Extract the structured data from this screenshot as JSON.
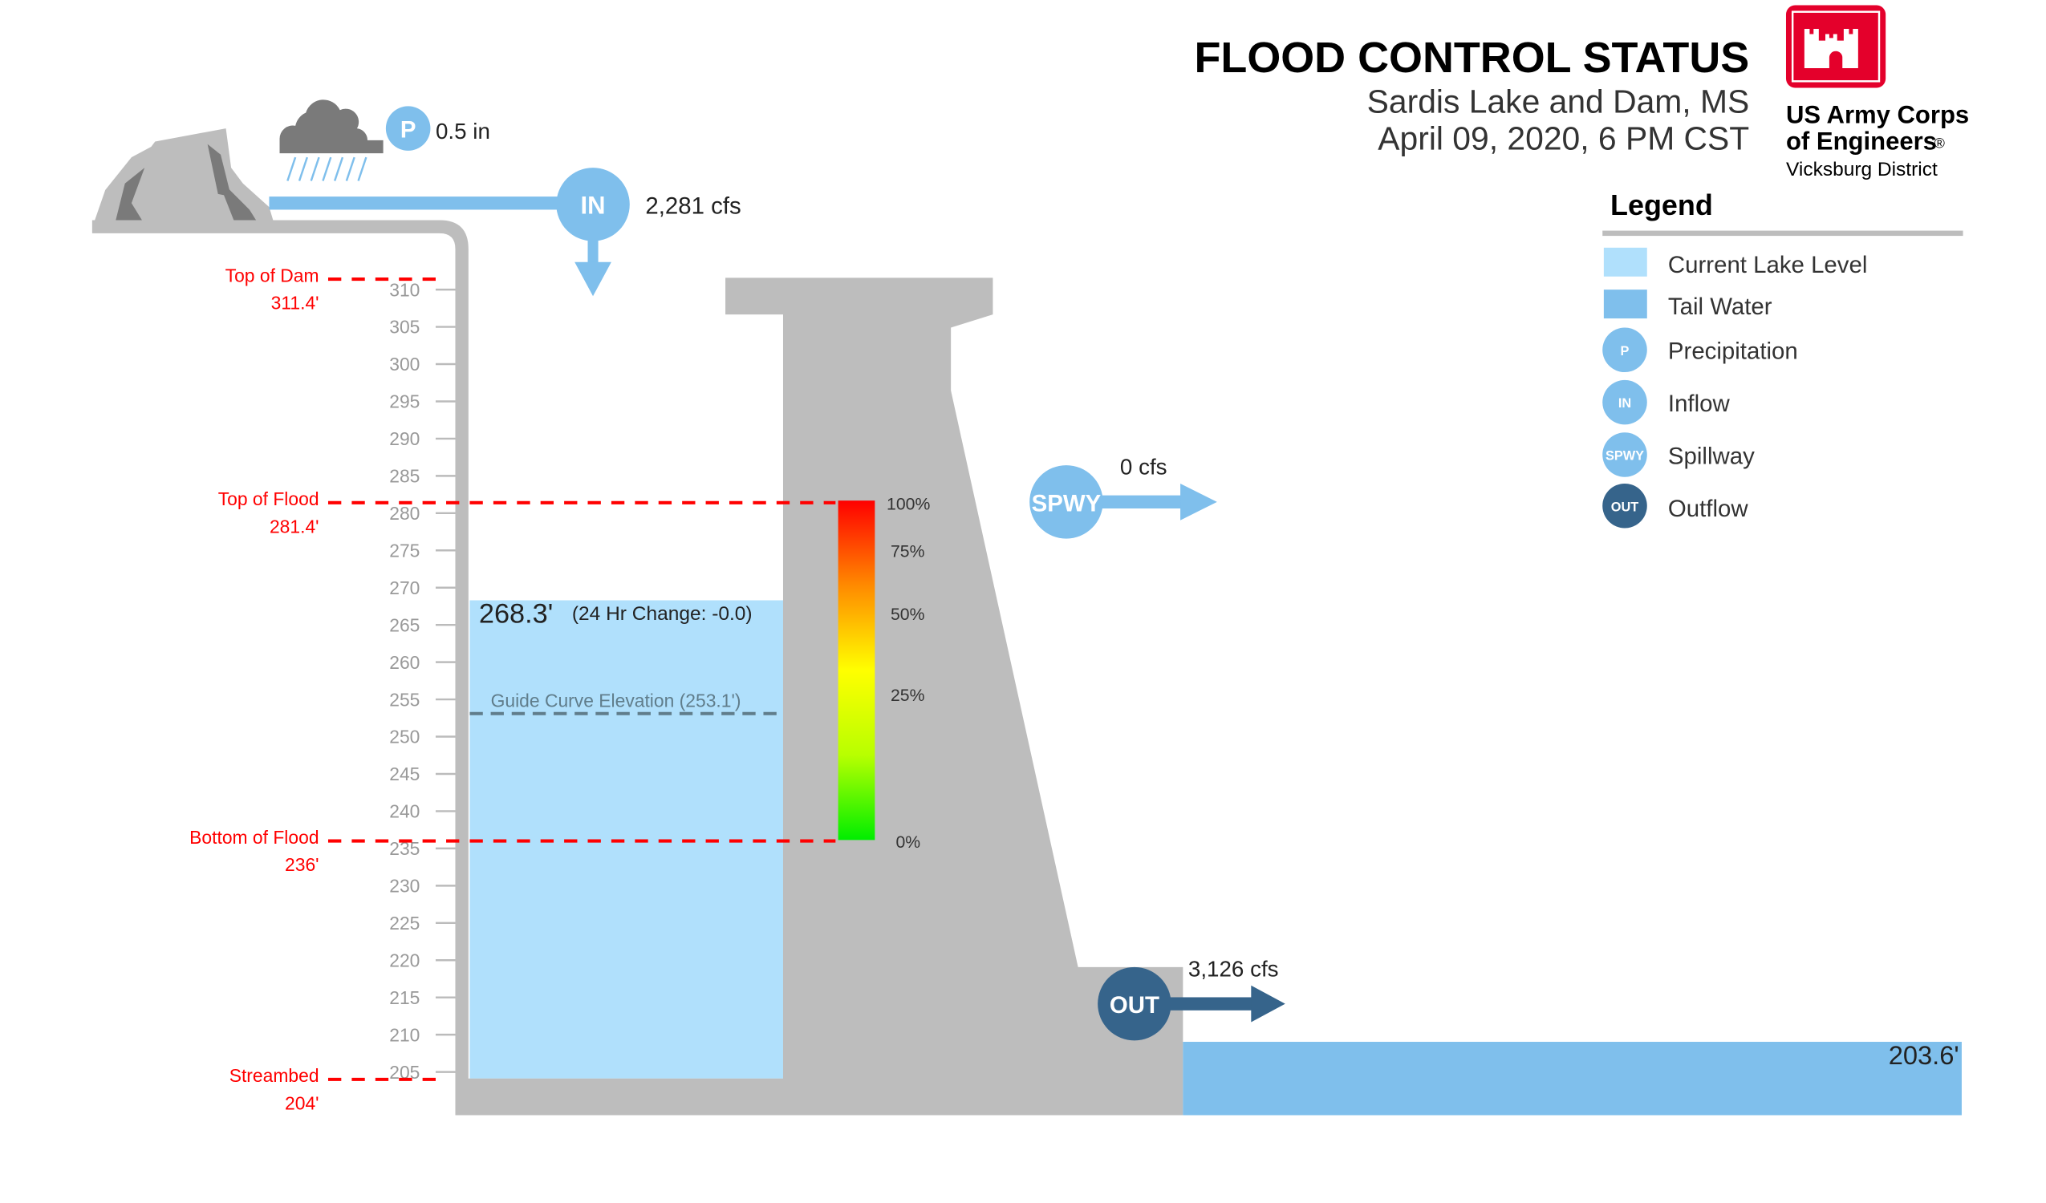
{
  "header": {
    "title": "FLOOD CONTROL STATUS",
    "location": "Sardis Lake and Dam, MS",
    "datetime": "April 09, 2020, 6 PM CST"
  },
  "logo": {
    "line1": "US Army Corps",
    "line2": "of Engineers",
    "registered": "®",
    "district": "Vicksburg District",
    "color": "#e4002b"
  },
  "precipitation": {
    "badge": "P",
    "value": "0.5 in",
    "icon": "rain-cloud-icon"
  },
  "inflow": {
    "badge": "IN",
    "value": "2,281 cfs"
  },
  "spillway": {
    "badge": "SPWY",
    "value": "0 cfs"
  },
  "outflow": {
    "badge": "OUT",
    "value": "3,126 cfs"
  },
  "lake": {
    "elevation": 268.3,
    "elevation_label": "268.3'",
    "change_label": "(24 Hr Change: -0.0)",
    "guide_curve": 253.1,
    "guide_curve_label": "Guide Curve Elevation (253.1')"
  },
  "tailwater": {
    "elevation": 203.6,
    "label": "203.6'"
  },
  "reference_levels": [
    {
      "name": "Top of Dam",
      "value": "311.4'",
      "elevation": 311.4
    },
    {
      "name": "Top of Flood",
      "value": "281.4'",
      "elevation": 281.4
    },
    {
      "name": "Bottom of Flood",
      "value": "236'",
      "elevation": 236
    },
    {
      "name": "Streambed",
      "value": "204'",
      "elevation": 204
    }
  ],
  "axis": {
    "ticks": [
      310,
      305,
      300,
      295,
      290,
      285,
      280,
      275,
      270,
      265,
      260,
      255,
      250,
      245,
      240,
      235,
      230,
      225,
      220,
      215,
      210,
      205
    ]
  },
  "flood_gauge": {
    "labels": [
      "100%",
      "75%",
      "50%",
      "25%",
      "0%"
    ]
  },
  "legend": {
    "title": "Legend",
    "items": [
      {
        "label": "Current Lake Level",
        "color": "#b0e0fc"
      },
      {
        "label": "Tail Water",
        "color": "#7fbfec"
      },
      {
        "label": "Precipitation",
        "badge": "P"
      },
      {
        "label": "Inflow",
        "badge": "IN"
      },
      {
        "label": "Spillway",
        "badge": "SPWY"
      },
      {
        "label": "Outflow",
        "badge": "OUT"
      }
    ]
  },
  "colors": {
    "lake": "#b0e0fc",
    "tailwater": "#7fbfec",
    "structure": "#bdbdbd",
    "flow": "#7fbfec",
    "outflow": "#36648b",
    "reference": "#ff0000",
    "guide_curve": "#607d8b"
  }
}
